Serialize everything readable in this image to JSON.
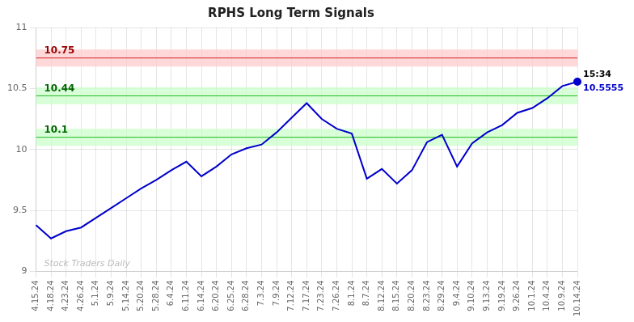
{
  "chart_data": {
    "type": "line",
    "title": "RPHS Long Term Signals",
    "categories": [
      "4.15.24",
      "4.18.24",
      "4.23.24",
      "4.26.24",
      "5.1.24",
      "5.9.24",
      "5.14.24",
      "5.20.24",
      "5.28.24",
      "6.4.24",
      "6.11.24",
      "6.14.24",
      "6.20.24",
      "6.25.24",
      "6.28.24",
      "7.3.24",
      "7.9.24",
      "7.12.24",
      "7.17.24",
      "7.23.24",
      "7.26.24",
      "8.1.24",
      "8.7.24",
      "8.12.24",
      "8.15.24",
      "8.20.24",
      "8.23.24",
      "8.29.24",
      "9.4.24",
      "9.10.24",
      "9.13.24",
      "9.19.24",
      "9.26.24",
      "10.1.24",
      "10.4.24",
      "10.9.24",
      "10.14.24"
    ],
    "values": [
      9.38,
      9.27,
      9.33,
      9.36,
      9.44,
      9.52,
      9.6,
      9.68,
      9.75,
      9.83,
      9.9,
      9.78,
      9.86,
      9.96,
      10.01,
      10.04,
      10.14,
      10.26,
      10.38,
      10.25,
      10.17,
      10.13,
      9.76,
      9.84,
      9.72,
      9.83,
      10.06,
      10.12,
      9.86,
      10.05,
      10.14,
      10.2,
      10.3,
      10.34,
      10.42,
      10.52,
      10.5555
    ],
    "color": "#0000cc",
    "ylim": [
      9,
      11
    ],
    "yticks": [
      9,
      9.5,
      10,
      10.5,
      11
    ],
    "grid": true,
    "reference_lines": [
      {
        "y": 10.75,
        "label": "10.75",
        "color": "#cc0000",
        "label_color": "#990000",
        "band": [
          10.68,
          10.82
        ],
        "band_color": "#ffcccc"
      },
      {
        "y": 10.44,
        "label": "10.44",
        "color": "#00aa00",
        "label_color": "#006600",
        "band": [
          10.37,
          10.51
        ],
        "band_color": "#ccffcc"
      },
      {
        "y": 10.1,
        "label": "10.1",
        "color": "#00aa00",
        "label_color": "#006600",
        "band": [
          10.03,
          10.17
        ],
        "band_color": "#ccffcc"
      }
    ],
    "end_annotations": [
      {
        "text": "15:34",
        "color": "#000000"
      },
      {
        "text": "10.5555",
        "color": "#0000cc"
      }
    ],
    "watermark": "Stock Traders Daily"
  }
}
